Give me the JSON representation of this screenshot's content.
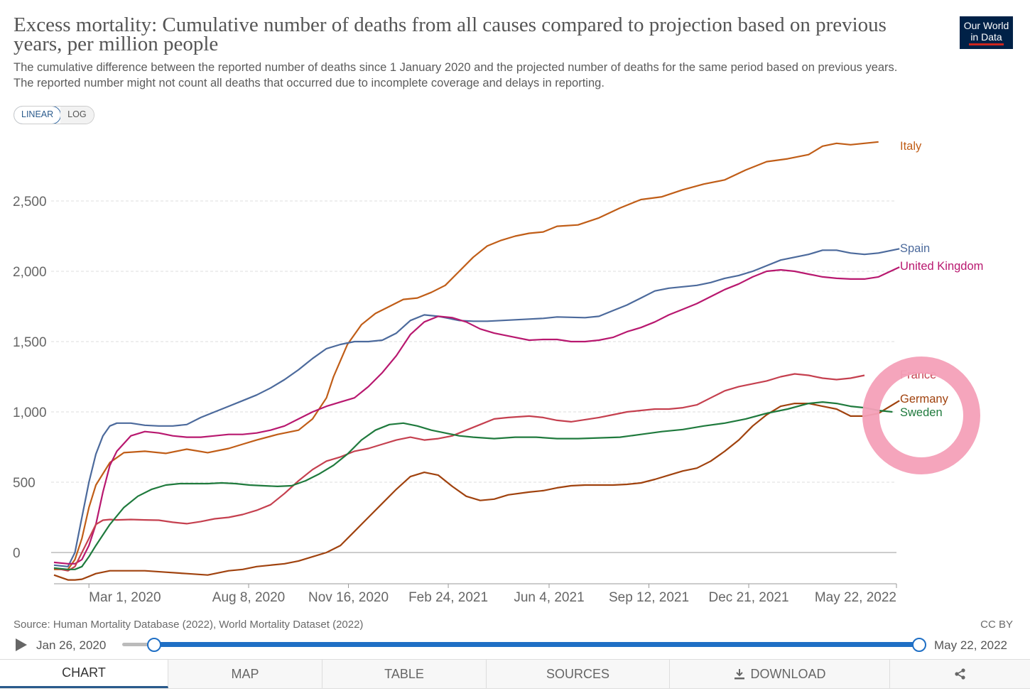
{
  "header": {
    "title": "Excess mortality: Cumulative number of deaths from all causes compared to projection based on previous years, per million people",
    "subtitle_line1": "The cumulative difference between the reported number of deaths since 1 January 2020 and the projected number of deaths for the same period based on previous years.",
    "subtitle_line2": "The reported number might not count all deaths that occurred due to incomplete coverage and delays in reporting.",
    "logo_line1": "Our World",
    "logo_line2": "in Data"
  },
  "scale_toggle": {
    "linear": "LINEAR",
    "log": "LOG",
    "selected": "LINEAR"
  },
  "footer": {
    "source": "Source: Human Mortality Database (2022), World Mortality Dataset (2022)",
    "license": "CC BY"
  },
  "timeline": {
    "start_label": "Jan 26, 2020",
    "end_label": "May 22, 2022"
  },
  "tabs": [
    "CHART",
    "MAP",
    "TABLE",
    "SOURCES",
    "DOWNLOAD"
  ],
  "active_tab": "CHART",
  "icons": {
    "play": "play-icon",
    "download": "download-icon",
    "share": "share-icon"
  },
  "annotation": {
    "type": "highlight-ring",
    "color": "#f4a0b8",
    "target_series": "Germany"
  },
  "chart_data": {
    "type": "line",
    "title": "Excess mortality: Cumulative number of deaths from all causes compared to projection based on previous years, per million people",
    "xlabel": "",
    "ylabel": "",
    "ylim": [
      -200,
      2950
    ],
    "yticks": [
      0,
      500,
      1000,
      1500,
      2000,
      2500
    ],
    "ytick_labels": [
      "0",
      "500",
      "1,000",
      "1,500",
      "2,000",
      "2,500"
    ],
    "xlim": [
      0,
      844
    ],
    "xticks": [
      35,
      195,
      295,
      395,
      496,
      596,
      696,
      844
    ],
    "xtick_labels": [
      "Mar 1, 2020",
      "Aug 8, 2020",
      "Nov 16, 2020",
      "Feb 24, 2021",
      "Jun 4, 2021",
      "Sep 12, 2021",
      "Dec 21, 2021",
      "May 22, 2022"
    ],
    "x_unit": "days since Jan 26, 2020",
    "grid": true,
    "legend": "right-inline",
    "series": [
      {
        "name": "Italy",
        "color": "#c05d17",
        "x": [
          0,
          14,
          21,
          28,
          35,
          42,
          56,
          70,
          91,
          112,
          133,
          154,
          175,
          189,
          203,
          224,
          245,
          259,
          273,
          280,
          294,
          308,
          322,
          336,
          350,
          364,
          378,
          392,
          406,
          420,
          434,
          448,
          462,
          476,
          490,
          504,
          525,
          546,
          567,
          588,
          609,
          630,
          651,
          672,
          693,
          714,
          735,
          756,
          770,
          784,
          798,
          812,
          826
        ],
        "y": [
          -120,
          -120,
          -50,
          100,
          320,
          480,
          640,
          710,
          720,
          705,
          735,
          710,
          740,
          770,
          800,
          840,
          870,
          950,
          1100,
          1250,
          1480,
          1620,
          1700,
          1750,
          1800,
          1810,
          1850,
          1900,
          2000,
          2100,
          2180,
          2220,
          2250,
          2270,
          2280,
          2320,
          2330,
          2380,
          2450,
          2510,
          2530,
          2580,
          2620,
          2650,
          2720,
          2780,
          2800,
          2830,
          2890,
          2910,
          2900,
          2910,
          2920
        ]
      },
      {
        "name": "Spain",
        "color": "#4c6a9c",
        "x": [
          0,
          14,
          21,
          28,
          35,
          42,
          49,
          56,
          63,
          77,
          91,
          105,
          119,
          133,
          147,
          161,
          175,
          189,
          203,
          217,
          231,
          245,
          259,
          273,
          287,
          301,
          315,
          329,
          343,
          357,
          371,
          385,
          392,
          406,
          420,
          434,
          448,
          476,
          490,
          504,
          532,
          546,
          560,
          574,
          588,
          602,
          616,
          630,
          644,
          658,
          672,
          686,
          700,
          714,
          728,
          742,
          756,
          770,
          784,
          798,
          812,
          826,
          847
        ],
        "y": [
          -90,
          -100,
          0,
          250,
          500,
          700,
          830,
          900,
          920,
          920,
          905,
          900,
          900,
          910,
          960,
          1000,
          1040,
          1080,
          1120,
          1170,
          1230,
          1300,
          1380,
          1450,
          1480,
          1500,
          1500,
          1510,
          1560,
          1650,
          1690,
          1680,
          1670,
          1650,
          1645,
          1645,
          1650,
          1660,
          1665,
          1675,
          1670,
          1680,
          1720,
          1760,
          1810,
          1860,
          1880,
          1890,
          1900,
          1920,
          1950,
          1970,
          2000,
          2040,
          2080,
          2100,
          2120,
          2150,
          2150,
          2130,
          2120,
          2130,
          2160
        ]
      },
      {
        "name": "United Kingdom",
        "color": "#b8186f",
        "x": [
          0,
          14,
          21,
          28,
          35,
          42,
          49,
          56,
          63,
          77,
          91,
          105,
          119,
          133,
          147,
          161,
          175,
          189,
          203,
          217,
          231,
          245,
          259,
          273,
          287,
          301,
          315,
          329,
          343,
          357,
          371,
          385,
          399,
          413,
          427,
          441,
          455,
          476,
          490,
          504,
          518,
          532,
          546,
          560,
          574,
          588,
          602,
          616,
          630,
          644,
          658,
          672,
          686,
          700,
          714,
          728,
          742,
          756,
          770,
          784,
          798,
          812,
          826,
          847
        ],
        "y": [
          -70,
          -80,
          -80,
          -50,
          50,
          200,
          430,
          620,
          720,
          830,
          860,
          850,
          830,
          820,
          820,
          830,
          840,
          840,
          850,
          870,
          900,
          950,
          1000,
          1040,
          1070,
          1100,
          1180,
          1280,
          1400,
          1550,
          1640,
          1680,
          1670,
          1640,
          1590,
          1560,
          1540,
          1510,
          1515,
          1515,
          1500,
          1500,
          1510,
          1530,
          1570,
          1600,
          1640,
          1690,
          1730,
          1770,
          1820,
          1870,
          1910,
          1960,
          2000,
          2010,
          2000,
          1980,
          1960,
          1950,
          1945,
          1945,
          1960,
          2030
        ]
      },
      {
        "name": "France",
        "color": "#c5404f",
        "x": [
          0,
          14,
          21,
          28,
          35,
          42,
          49,
          56,
          63,
          77,
          91,
          105,
          119,
          133,
          147,
          161,
          175,
          189,
          203,
          217,
          231,
          245,
          259,
          273,
          287,
          301,
          315,
          329,
          343,
          357,
          371,
          385,
          399,
          413,
          427,
          441,
          455,
          476,
          490,
          504,
          518,
          532,
          546,
          560,
          574,
          588,
          602,
          616,
          630,
          644,
          658,
          672,
          686,
          700,
          714,
          728,
          742,
          756,
          770,
          784,
          798,
          812
        ],
        "y": [
          -110,
          -130,
          -100,
          0,
          100,
          200,
          230,
          235,
          232,
          235,
          232,
          230,
          215,
          205,
          220,
          240,
          250,
          270,
          300,
          340,
          420,
          510,
          590,
          650,
          680,
          720,
          740,
          770,
          800,
          820,
          800,
          810,
          830,
          870,
          910,
          950,
          960,
          970,
          960,
          940,
          930,
          945,
          960,
          980,
          1000,
          1010,
          1020,
          1020,
          1030,
          1050,
          1100,
          1150,
          1180,
          1200,
          1220,
          1250,
          1270,
          1260,
          1240,
          1230,
          1240,
          1260
        ]
      },
      {
        "name": "Germany",
        "color": "#a0420e",
        "x": [
          0,
          14,
          21,
          28,
          35,
          42,
          56,
          70,
          91,
          112,
          133,
          154,
          175,
          189,
          203,
          217,
          231,
          245,
          259,
          273,
          287,
          301,
          315,
          329,
          343,
          357,
          371,
          385,
          399,
          413,
          427,
          441,
          455,
          476,
          490,
          504,
          518,
          532,
          546,
          560,
          574,
          588,
          602,
          616,
          630,
          644,
          658,
          672,
          686,
          700,
          714,
          728,
          742,
          756,
          770,
          784,
          798,
          812,
          826,
          847
        ],
        "y": [
          -160,
          -195,
          -195,
          -190,
          -170,
          -150,
          -130,
          -130,
          -130,
          -140,
          -150,
          -160,
          -130,
          -120,
          -100,
          -90,
          -80,
          -60,
          -30,
          0,
          50,
          150,
          250,
          350,
          450,
          540,
          570,
          550,
          470,
          400,
          370,
          380,
          410,
          430,
          440,
          460,
          475,
          480,
          480,
          480,
          485,
          495,
          520,
          550,
          580,
          600,
          650,
          720,
          800,
          900,
          980,
          1040,
          1060,
          1060,
          1040,
          1020,
          970,
          970,
          990,
          1080
        ]
      },
      {
        "name": "Sweden",
        "color": "#1f7a3d",
        "x": [
          0,
          14,
          21,
          28,
          35,
          42,
          56,
          70,
          84,
          98,
          112,
          126,
          140,
          154,
          168,
          182,
          196,
          210,
          224,
          238,
          252,
          266,
          280,
          294,
          308,
          322,
          336,
          350,
          364,
          378,
          392,
          406,
          420,
          441,
          462,
          483,
          504,
          525,
          546,
          567,
          588,
          609,
          630,
          651,
          672,
          693,
          714,
          735,
          756,
          770,
          784,
          798,
          812,
          826,
          840
        ],
        "y": [
          -110,
          -120,
          -120,
          -100,
          -30,
          50,
          200,
          320,
          400,
          450,
          480,
          490,
          490,
          490,
          495,
          490,
          480,
          475,
          470,
          475,
          510,
          560,
          620,
          700,
          800,
          870,
          910,
          920,
          900,
          870,
          850,
          830,
          820,
          810,
          820,
          820,
          810,
          810,
          815,
          820,
          840,
          860,
          875,
          900,
          920,
          950,
          990,
          1020,
          1060,
          1070,
          1060,
          1040,
          1030,
          1010,
          1000
        ]
      }
    ]
  }
}
